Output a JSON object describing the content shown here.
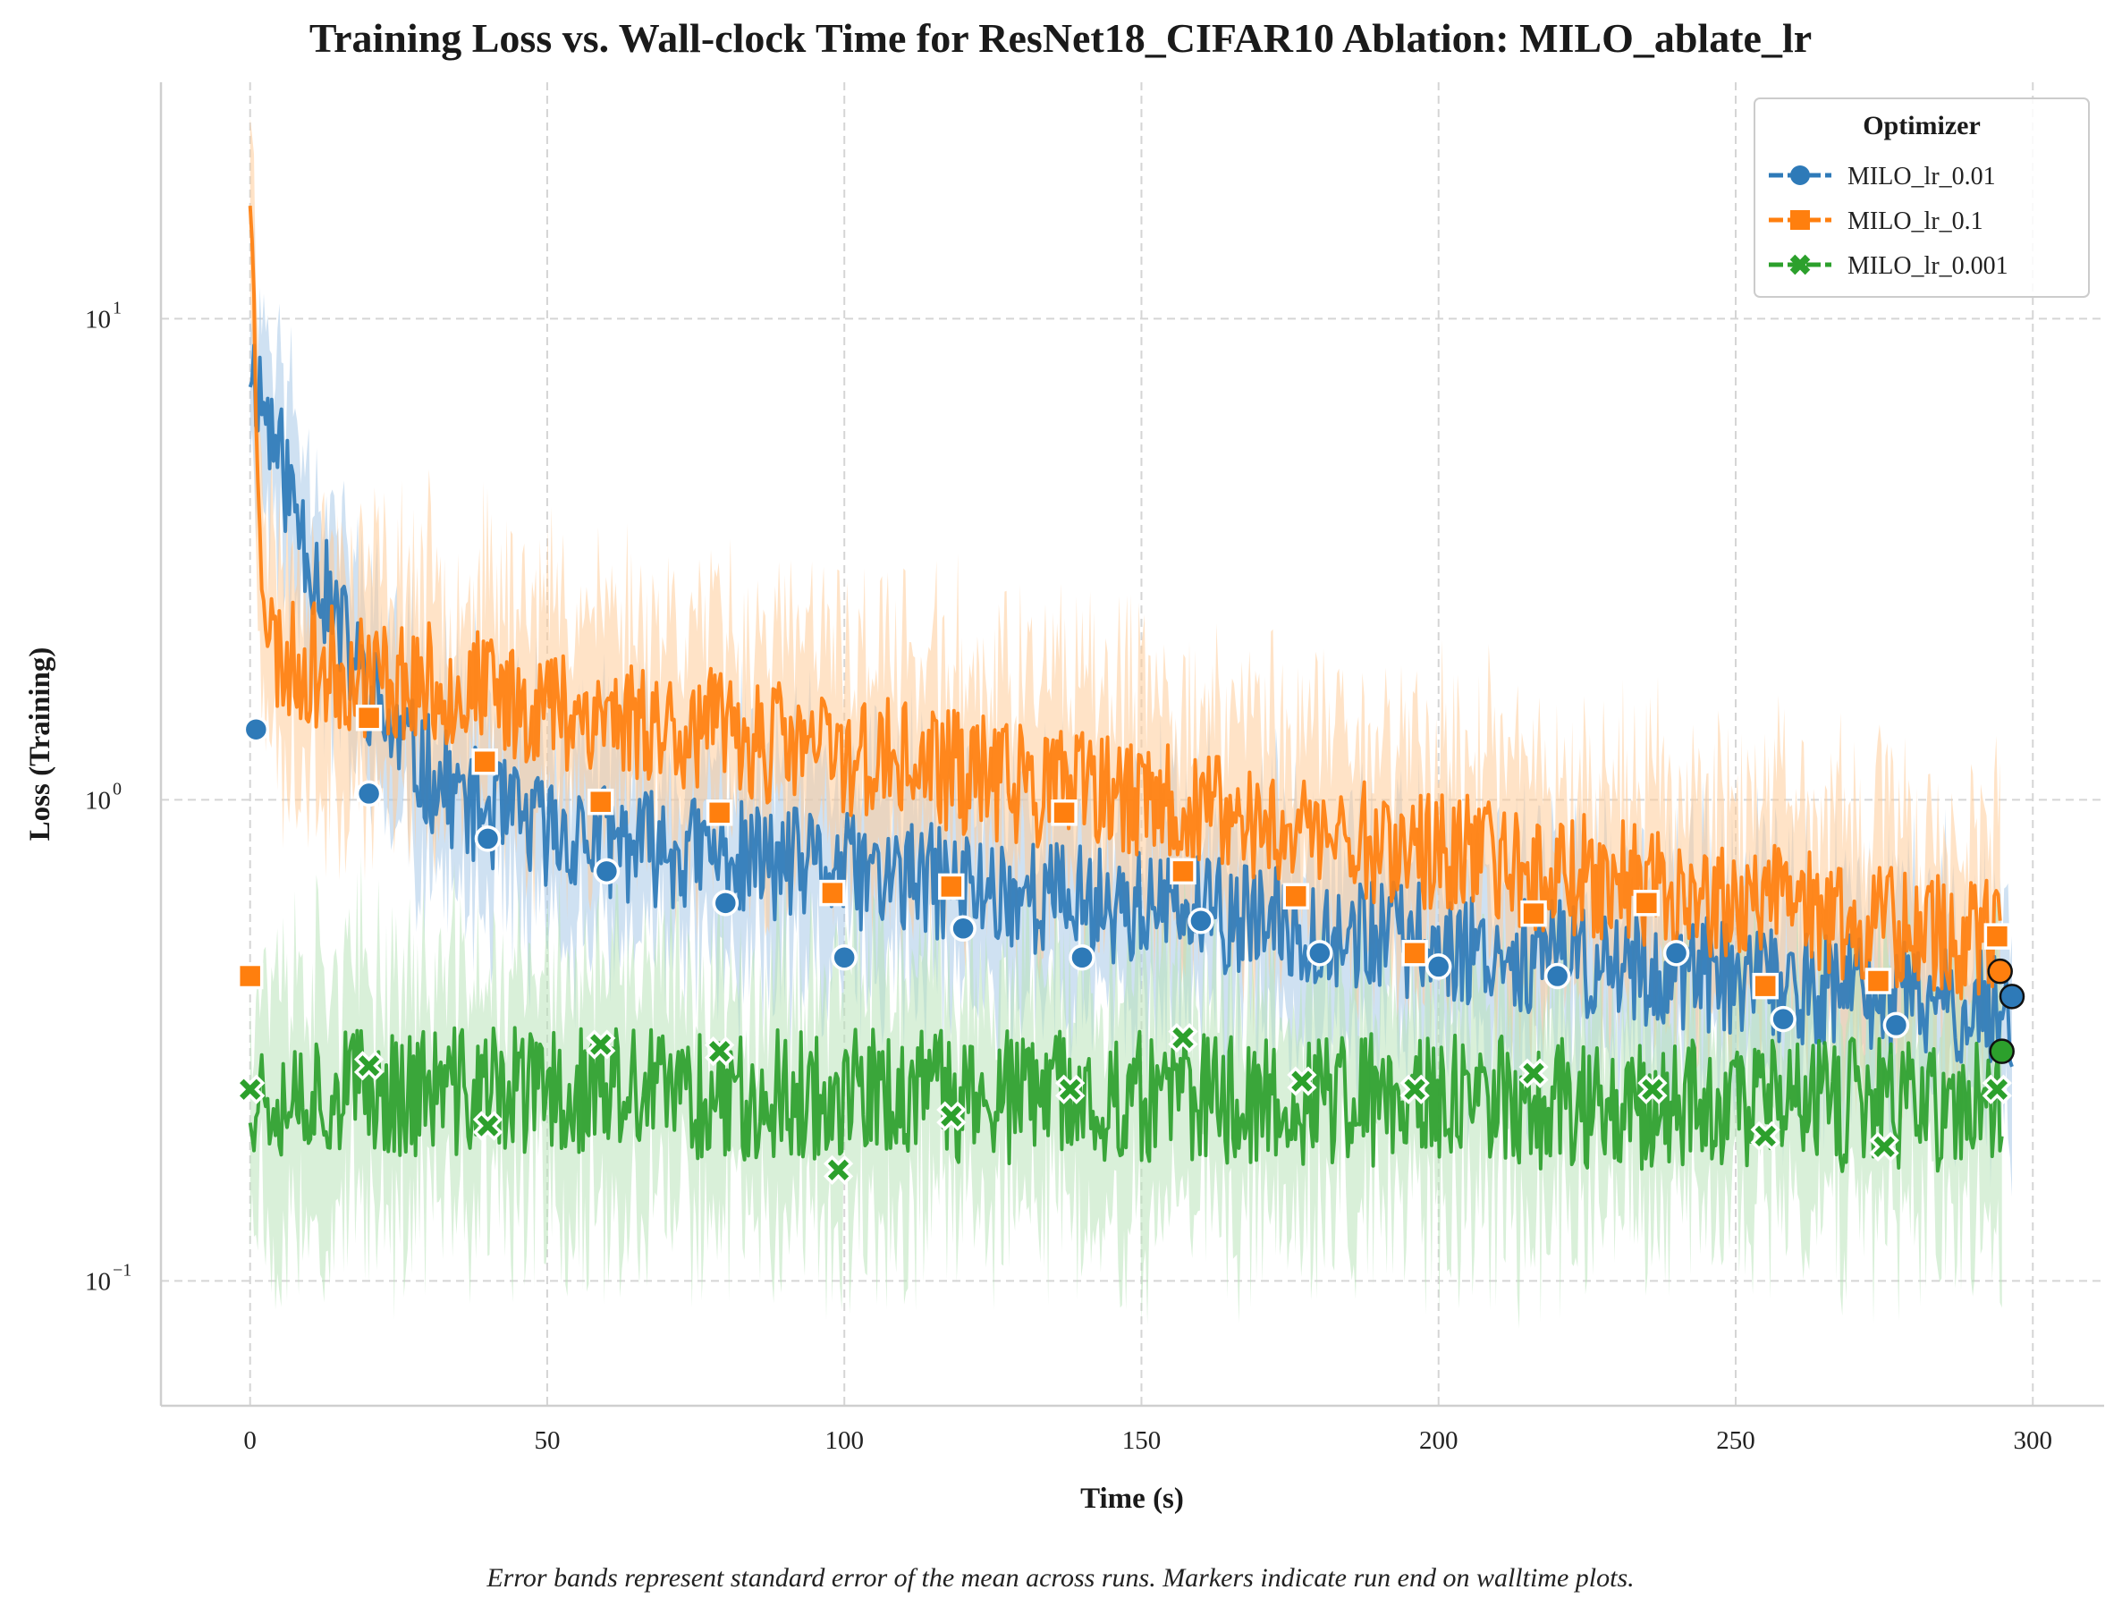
{
  "chart_data": {
    "type": "line",
    "title": "Training Loss vs. Wall-clock Time for ResNet18_CIFAR10 Ablation: MILO_ablate_lr",
    "xlabel": "Time (s)",
    "ylabel": "Loss (Training)",
    "caption": "Error bands represent standard error of the mean across runs. Markers indicate run end on walltime plots.",
    "xlim": [
      -15,
      312
    ],
    "ylim": [
      0.055,
      31
    ],
    "yscale": "log",
    "grid": true,
    "x_ticks": [
      0,
      50,
      100,
      150,
      200,
      250,
      300
    ],
    "x_tick_labels": [
      "0",
      "50",
      "100",
      "150",
      "200",
      "250",
      "300"
    ],
    "y_ticks": [
      0.1,
      1,
      10
    ],
    "y_tick_labels": [
      {
        "base": "10",
        "exp": "−1"
      },
      {
        "base": "10",
        "exp": "0"
      },
      {
        "base": "10",
        "exp": "1"
      }
    ],
    "legend": {
      "title": "Optimizer",
      "placement": "top-right"
    },
    "series": [
      {
        "name": "MILO_lr_0.01",
        "color": "#2e7ab8",
        "band_color": "#a8c8e8",
        "marker": "circle",
        "curve": {
          "start_value": 2.8,
          "decay_ratio": 0.12,
          "tau": 9,
          "tail_start": 1.0,
          "tail_end": 0.36,
          "noise": 0.28,
          "band_noise": 0.5,
          "seed": 11
        },
        "end": {
          "x": 296.5,
          "y": 0.39
        },
        "x": [
          1,
          20,
          40,
          60,
          80,
          100,
          120,
          140,
          160,
          180,
          200,
          220,
          240,
          258,
          277
        ],
        "values": [
          1.4,
          1.03,
          0.83,
          0.71,
          0.61,
          0.47,
          0.54,
          0.47,
          0.56,
          0.48,
          0.45,
          0.43,
          0.48,
          0.35,
          0.34
        ]
      },
      {
        "name": "MILO_lr_0.1",
        "color": "#ff7f0e",
        "band_color": "#ffcc99",
        "marker": "square",
        "curve": {
          "start_value": 23,
          "decay_ratio": 0.1,
          "tau": 0.8,
          "tail_start": 2.0,
          "tail_end": 0.5,
          "noise": 0.3,
          "band_noise": 0.55,
          "seed": 23
        },
        "end": {
          "x": 294.5,
          "y": 0.44
        },
        "x": [
          0,
          20,
          39.5,
          59,
          79,
          98,
          118,
          137,
          157,
          176,
          196,
          216,
          235,
          255,
          274,
          294
        ],
        "values": [
          0.43,
          1.48,
          1.2,
          0.99,
          0.94,
          0.64,
          0.66,
          0.94,
          0.71,
          0.63,
          0.48,
          0.58,
          0.61,
          0.41,
          0.42,
          0.52
        ]
      },
      {
        "name": "MILO_lr_0.001",
        "color": "#2ca02c",
        "band_color": "#b9e3b9",
        "marker": "x",
        "curve": {
          "start_value": 0.25,
          "decay_ratio": 1,
          "tau": 1,
          "tail_start": 0.25,
          "tail_end": 0.23,
          "noise": 0.32,
          "band_noise": 0.6,
          "seed": 37
        },
        "end": {
          "x": 294.8,
          "y": 0.3
        },
        "x": [
          0,
          20,
          40,
          59,
          79,
          99,
          118,
          138,
          157,
          177,
          196,
          216,
          236,
          255,
          275,
          294
        ],
        "values": [
          0.25,
          0.28,
          0.21,
          0.31,
          0.3,
          0.17,
          0.22,
          0.25,
          0.32,
          0.26,
          0.25,
          0.27,
          0.25,
          0.2,
          0.19,
          0.25
        ]
      }
    ]
  }
}
